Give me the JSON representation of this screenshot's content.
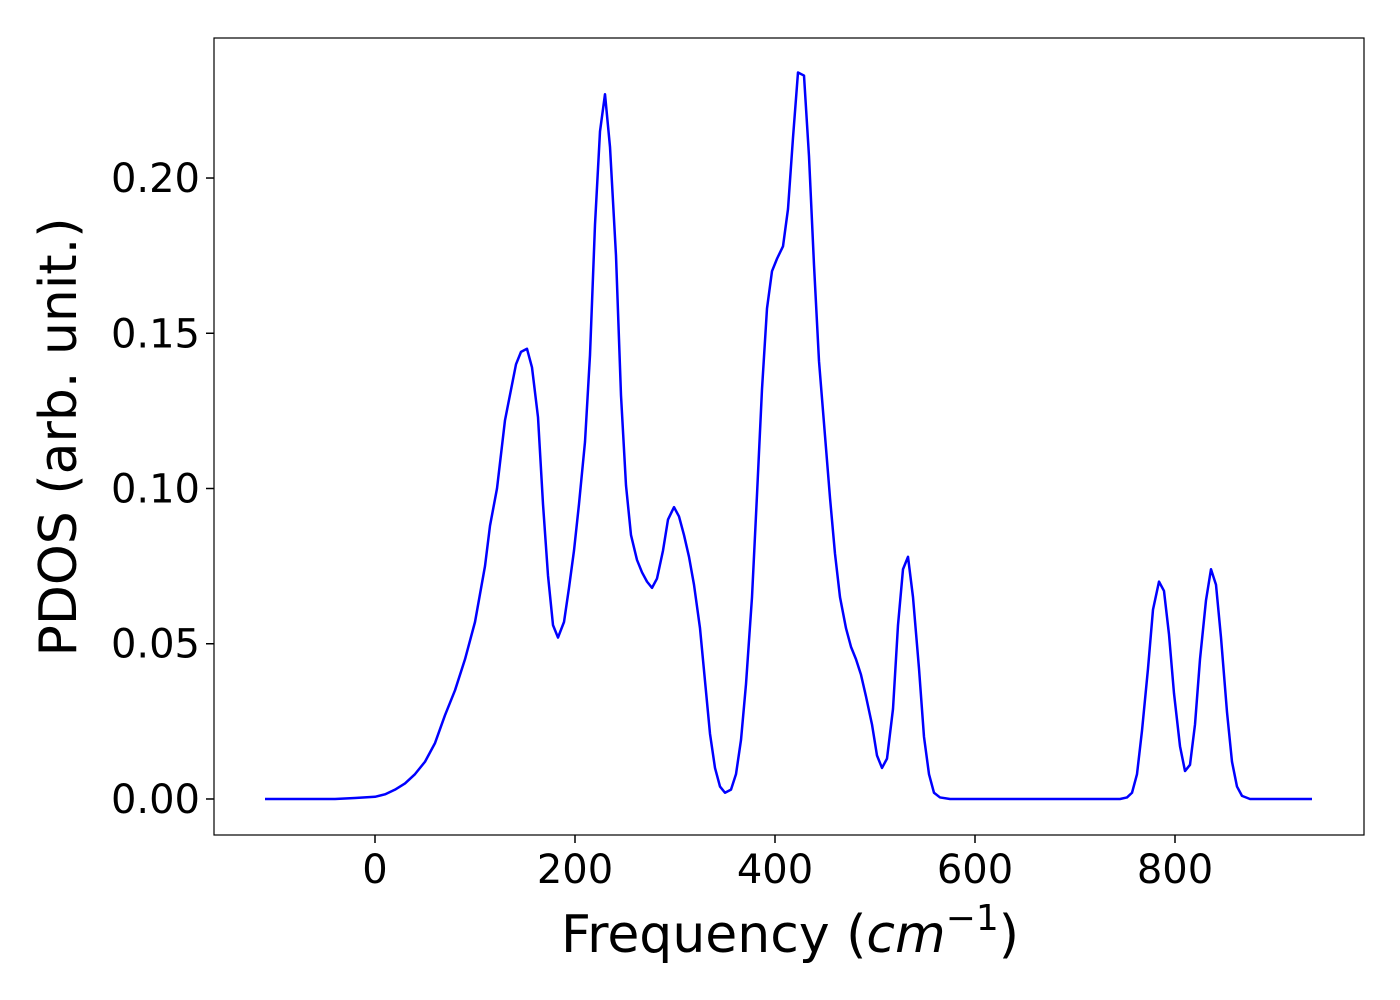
{
  "chart_data": {
    "type": "line",
    "ylabel": "PDOS (arb. unit.)",
    "xlabel_parts": [
      "Frequency (",
      "cm",
      "−1",
      ")"
    ],
    "xlim": [
      -161,
      989
    ],
    "ylim": [
      -0.0116,
      0.2451
    ],
    "xticks": [
      0,
      200,
      400,
      600,
      800
    ],
    "yticks": [
      {
        "value": 0,
        "label": "0.00"
      },
      {
        "value": 0.05,
        "label": "0.05"
      },
      {
        "value": 0.1,
        "label": "0.10"
      },
      {
        "value": 0.15,
        "label": "0.15"
      },
      {
        "value": 0.2,
        "label": "0.20"
      }
    ],
    "grid": false,
    "series": [
      {
        "color": "#0000ff",
        "x": [
          -110,
          -40,
          -20,
          0,
          10,
          20,
          30,
          40,
          50,
          60,
          70,
          80,
          90,
          100,
          110,
          115,
          122,
          130,
          141,
          146,
          152,
          157,
          163,
          168,
          173,
          178,
          183,
          189,
          194,
          199,
          204,
          210,
          215,
          220,
          225,
          230,
          235,
          241,
          246,
          251,
          256,
          262,
          267,
          272,
          277,
          282,
          288,
          293,
          299,
          304,
          309,
          314,
          319,
          325,
          330,
          335,
          340,
          345,
          350,
          356,
          361,
          366,
          371,
          377,
          382,
          387,
          392,
          397,
          402,
          408,
          413,
          418,
          423,
          429,
          434,
          439,
          444,
          450,
          455,
          460,
          465,
          471,
          476,
          481,
          486,
          491,
          497,
          502,
          507,
          512,
          518,
          523,
          528,
          533,
          538,
          544,
          549,
          554,
          559,
          565,
          575,
          745,
          752,
          757,
          762,
          767,
          773,
          778,
          784,
          789,
          794,
          799,
          805,
          810,
          815,
          820,
          825,
          831,
          836,
          841,
          846,
          852,
          857,
          862,
          867,
          875,
          937
        ],
        "values": [
          0,
          0,
          0.0003,
          0.0007,
          0.0015,
          0.003,
          0.005,
          0.008,
          0.012,
          0.018,
          0.027,
          0.035,
          0.045,
          0.057,
          0.075,
          0.088,
          0.1,
          0.122,
          0.14,
          0.144,
          0.145,
          0.139,
          0.123,
          0.095,
          0.072,
          0.056,
          0.052,
          0.057,
          0.068,
          0.08,
          0.095,
          0.115,
          0.143,
          0.185,
          0.215,
          0.227,
          0.21,
          0.175,
          0.13,
          0.101,
          0.085,
          0.077,
          0.073,
          0.07,
          0.068,
          0.071,
          0.08,
          0.09,
          0.094,
          0.091,
          0.085,
          0.078,
          0.069,
          0.055,
          0.038,
          0.021,
          0.01,
          0.004,
          0.002,
          0.003,
          0.008,
          0.019,
          0.037,
          0.065,
          0.098,
          0.132,
          0.158,
          0.17,
          0.174,
          0.178,
          0.19,
          0.213,
          0.234,
          0.233,
          0.207,
          0.172,
          0.141,
          0.117,
          0.097,
          0.079,
          0.065,
          0.055,
          0.049,
          0.045,
          0.04,
          0.033,
          0.024,
          0.014,
          0.01,
          0.013,
          0.029,
          0.056,
          0.074,
          0.078,
          0.065,
          0.042,
          0.02,
          0.008,
          0.002,
          0.0005,
          0,
          0,
          0.0005,
          0.002,
          0.008,
          0.022,
          0.042,
          0.061,
          0.07,
          0.067,
          0.053,
          0.034,
          0.017,
          0.009,
          0.011,
          0.024,
          0.045,
          0.064,
          0.074,
          0.069,
          0.052,
          0.028,
          0.012,
          0.004,
          0.001,
          0,
          0
        ]
      }
    ]
  }
}
